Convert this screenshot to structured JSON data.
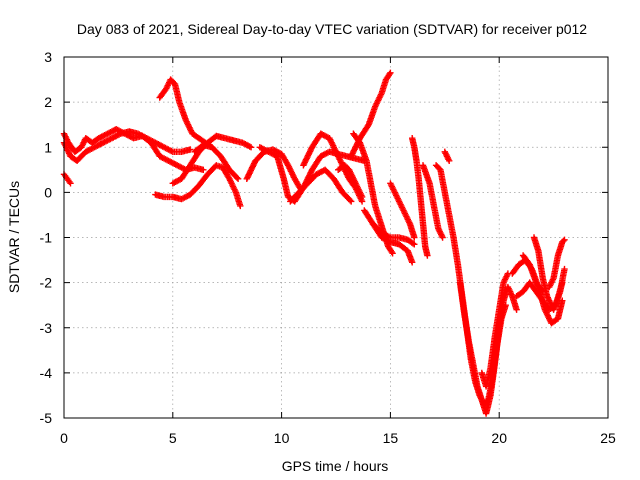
{
  "chart_data": {
    "type": "scatter",
    "title": "Day 083 of 2021, Sidereal Day-to-day VTEC variation (SDTVAR) for receiver p012",
    "xlabel": "GPS time / hours",
    "ylabel": "SDTVAR / TECUs",
    "xlim": [
      0,
      25
    ],
    "ylim": [
      -5,
      3
    ],
    "xticks": [
      "0",
      "5",
      "10",
      "15",
      "20",
      "25"
    ],
    "yticks": [
      "3",
      "2",
      "1",
      "0",
      "-1",
      "-2",
      "-3",
      "-4",
      "-5"
    ],
    "grid": true,
    "marker": "plus",
    "color": "#ff0000",
    "tracks": [
      [
        [
          0.0,
          1.3
        ],
        [
          0.2,
          1.1
        ],
        [
          0.5,
          0.9
        ],
        [
          0.8,
          1.0
        ],
        [
          1.0,
          1.2
        ],
        [
          1.3,
          1.1
        ],
        [
          1.6,
          1.2
        ],
        [
          2.0,
          1.3
        ],
        [
          2.4,
          1.4
        ],
        [
          2.8,
          1.3
        ],
        [
          3.2,
          1.2
        ],
        [
          3.6,
          1.25
        ],
        [
          4.0,
          1.1
        ],
        [
          4.4,
          0.8
        ],
        [
          4.8,
          0.7
        ],
        [
          5.2,
          0.6
        ],
        [
          5.6,
          0.5
        ],
        [
          6.0,
          0.55
        ],
        [
          6.4,
          0.5
        ]
      ],
      [
        [
          0.0,
          1.1
        ],
        [
          0.3,
          0.8
        ],
        [
          0.6,
          0.7
        ],
        [
          1.0,
          0.9
        ],
        [
          1.4,
          1.0
        ],
        [
          1.8,
          1.1
        ],
        [
          2.2,
          1.2
        ],
        [
          2.6,
          1.3
        ],
        [
          3.0,
          1.35
        ],
        [
          3.4,
          1.3
        ],
        [
          3.8,
          1.2
        ],
        [
          4.2,
          1.1
        ],
        [
          4.6,
          1.0
        ],
        [
          5.0,
          0.9
        ],
        [
          5.4,
          0.9
        ],
        [
          5.8,
          0.95
        ]
      ],
      [
        [
          0.0,
          0.4
        ],
        [
          0.15,
          0.3
        ],
        [
          0.3,
          0.2
        ]
      ],
      [
        [
          4.4,
          2.1
        ],
        [
          4.7,
          2.3
        ],
        [
          4.9,
          2.5
        ],
        [
          5.1,
          2.4
        ],
        [
          5.3,
          2.0
        ],
        [
          5.6,
          1.6
        ],
        [
          5.9,
          1.3
        ],
        [
          6.2,
          1.2
        ],
        [
          6.5,
          1.1
        ],
        [
          6.8,
          1.0
        ]
      ],
      [
        [
          4.2,
          -0.05
        ],
        [
          4.6,
          -0.1
        ],
        [
          5.0,
          -0.1
        ],
        [
          5.4,
          -0.15
        ],
        [
          5.8,
          -0.05
        ],
        [
          6.2,
          0.15
        ],
        [
          6.6,
          0.4
        ],
        [
          7.0,
          0.6
        ],
        [
          7.3,
          0.55
        ],
        [
          7.6,
          0.3
        ],
        [
          7.9,
          0.0
        ],
        [
          8.1,
          -0.3
        ]
      ],
      [
        [
          5.0,
          0.2
        ],
        [
          5.4,
          0.3
        ],
        [
          5.8,
          0.6
        ],
        [
          6.2,
          0.9
        ],
        [
          6.6,
          1.1
        ],
        [
          7.0,
          1.25
        ],
        [
          7.4,
          1.2
        ],
        [
          7.8,
          1.15
        ],
        [
          8.2,
          1.1
        ],
        [
          8.6,
          1.0
        ]
      ],
      [
        [
          6.0,
          0.9
        ],
        [
          6.4,
          1.05
        ],
        [
          6.8,
          1.0
        ],
        [
          7.2,
          0.8
        ],
        [
          7.6,
          0.5
        ],
        [
          8.0,
          0.3
        ]
      ],
      [
        [
          8.4,
          0.3
        ],
        [
          8.8,
          0.7
        ],
        [
          9.2,
          0.9
        ],
        [
          9.6,
          0.95
        ],
        [
          10.0,
          0.85
        ],
        [
          10.3,
          0.6
        ],
        [
          10.6,
          0.3
        ],
        [
          10.9,
          0.05
        ]
      ],
      [
        [
          9.0,
          1.0
        ],
        [
          9.4,
          0.9
        ],
        [
          9.8,
          0.8
        ],
        [
          10.1,
          0.3
        ],
        [
          10.3,
          -0.1
        ],
        [
          10.6,
          -0.2
        ],
        [
          11.0,
          0.1
        ],
        [
          11.4,
          0.5
        ],
        [
          11.8,
          0.8
        ],
        [
          12.2,
          0.9
        ],
        [
          12.6,
          0.85
        ],
        [
          13.0,
          0.8
        ],
        [
          13.4,
          0.75
        ],
        [
          13.8,
          0.7
        ]
      ],
      [
        [
          10.4,
          -0.2
        ],
        [
          10.8,
          0.0
        ],
        [
          11.2,
          0.2
        ],
        [
          11.6,
          0.4
        ],
        [
          12.0,
          0.5
        ],
        [
          12.4,
          0.3
        ],
        [
          12.8,
          0.0
        ],
        [
          13.2,
          -0.2
        ]
      ],
      [
        [
          11.0,
          0.6
        ],
        [
          11.4,
          1.0
        ],
        [
          11.8,
          1.3
        ],
        [
          12.2,
          1.2
        ],
        [
          12.5,
          0.9
        ],
        [
          12.8,
          0.6
        ],
        [
          13.1,
          0.3
        ],
        [
          13.4,
          0.1
        ],
        [
          13.7,
          -0.2
        ]
      ],
      [
        [
          12.6,
          0.5
        ],
        [
          12.9,
          0.6
        ],
        [
          13.1,
          0.5
        ],
        [
          13.3,
          0.3
        ],
        [
          13.5,
          0.1
        ],
        [
          13.7,
          -0.1
        ]
      ],
      [
        [
          13.2,
          0.8
        ],
        [
          13.6,
          1.2
        ],
        [
          14.0,
          1.5
        ],
        [
          14.3,
          1.9
        ],
        [
          14.6,
          2.2
        ],
        [
          14.8,
          2.5
        ],
        [
          15.0,
          2.65
        ]
      ],
      [
        [
          13.3,
          1.3
        ],
        [
          13.6,
          1.1
        ],
        [
          13.9,
          0.7
        ],
        [
          14.1,
          0.2
        ],
        [
          14.3,
          -0.3
        ],
        [
          14.5,
          -0.6
        ],
        [
          14.7,
          -0.9
        ],
        [
          14.9,
          -1.2
        ],
        [
          15.1,
          -1.35
        ]
      ],
      [
        [
          13.8,
          -0.4
        ],
        [
          14.2,
          -0.7
        ],
        [
          14.6,
          -0.9
        ],
        [
          15.0,
          -1.0
        ],
        [
          15.4,
          -1.0
        ],
        [
          15.8,
          -1.05
        ],
        [
          16.1,
          -1.15
        ]
      ],
      [
        [
          14.2,
          -0.7
        ],
        [
          14.6,
          -1.0
        ],
        [
          15.0,
          -1.1
        ],
        [
          15.4,
          -1.15
        ],
        [
          15.8,
          -1.3
        ],
        [
          16.0,
          -1.55
        ]
      ],
      [
        [
          15.0,
          0.2
        ],
        [
          15.3,
          -0.1
        ],
        [
          15.6,
          -0.4
        ],
        [
          15.9,
          -0.7
        ],
        [
          16.1,
          -1.0
        ]
      ],
      [
        [
          16.0,
          1.2
        ],
        [
          16.1,
          1.0
        ],
        [
          16.2,
          0.7
        ],
        [
          16.3,
          0.3
        ],
        [
          16.4,
          -0.2
        ],
        [
          16.5,
          -0.7
        ],
        [
          16.6,
          -1.2
        ],
        [
          16.7,
          -1.4
        ]
      ],
      [
        [
          16.5,
          0.6
        ],
        [
          16.8,
          0.2
        ],
        [
          17.0,
          -0.3
        ],
        [
          17.2,
          -0.8
        ],
        [
          17.4,
          -1.0
        ]
      ],
      [
        [
          17.1,
          0.6
        ],
        [
          17.3,
          0.5
        ],
        [
          17.5,
          0.0
        ],
        [
          17.7,
          -0.5
        ],
        [
          17.9,
          -1.0
        ],
        [
          18.1,
          -1.6
        ],
        [
          18.3,
          -2.3
        ],
        [
          18.5,
          -3.0
        ],
        [
          18.7,
          -3.7
        ],
        [
          18.9,
          -4.2
        ],
        [
          19.1,
          -4.5
        ],
        [
          19.3,
          -4.7
        ],
        [
          19.5,
          -4.6
        ],
        [
          19.7,
          -4.1
        ],
        [
          19.9,
          -3.4
        ],
        [
          20.1,
          -2.8
        ],
        [
          20.3,
          -2.5
        ]
      ],
      [
        [
          17.5,
          0.9
        ],
        [
          17.7,
          0.7
        ]
      ],
      [
        [
          18.2,
          -2.0
        ],
        [
          18.4,
          -2.7
        ],
        [
          18.6,
          -3.3
        ],
        [
          18.8,
          -3.8
        ],
        [
          19.0,
          -4.3
        ],
        [
          19.2,
          -4.6
        ],
        [
          19.4,
          -4.9
        ],
        [
          19.6,
          -4.5
        ],
        [
          19.8,
          -3.8
        ],
        [
          20.0,
          -3.0
        ],
        [
          20.2,
          -2.4
        ],
        [
          20.4,
          -2.1
        ],
        [
          20.6,
          -2.3
        ],
        [
          20.8,
          -2.6
        ]
      ],
      [
        [
          19.2,
          -4.0
        ],
        [
          19.4,
          -4.3
        ],
        [
          19.6,
          -3.9
        ],
        [
          19.8,
          -3.2
        ],
        [
          20.0,
          -2.6
        ],
        [
          20.2,
          -2.0
        ],
        [
          20.4,
          -1.8
        ]
      ],
      [
        [
          20.6,
          -1.8
        ],
        [
          20.9,
          -1.6
        ],
        [
          21.2,
          -1.5
        ],
        [
          21.5,
          -1.7
        ],
        [
          21.8,
          -2.1
        ],
        [
          22.1,
          -2.6
        ],
        [
          22.4,
          -2.9
        ],
        [
          22.7,
          -2.8
        ],
        [
          22.9,
          -2.4
        ]
      ],
      [
        [
          20.8,
          -2.3
        ],
        [
          21.1,
          -2.2
        ],
        [
          21.4,
          -2.0
        ],
        [
          21.7,
          -2.2
        ],
        [
          22.0,
          -2.4
        ],
        [
          22.3,
          -2.6
        ],
        [
          22.6,
          -2.5
        ],
        [
          22.9,
          -2.0
        ]
      ],
      [
        [
          21.6,
          -1.0
        ],
        [
          21.8,
          -1.3
        ],
        [
          22.0,
          -1.9
        ],
        [
          22.2,
          -2.3
        ],
        [
          22.5,
          -2.6
        ],
        [
          22.8,
          -2.2
        ],
        [
          23.0,
          -1.7
        ]
      ],
      [
        [
          22.3,
          -2.1
        ],
        [
          22.5,
          -1.9
        ],
        [
          22.7,
          -1.4
        ],
        [
          22.9,
          -1.1
        ],
        [
          23.0,
          -1.05
        ]
      ],
      [
        [
          21.1,
          -1.4
        ],
        [
          21.4,
          -1.6
        ],
        [
          21.7,
          -2.0
        ],
        [
          22.0,
          -2.2
        ]
      ]
    ]
  }
}
